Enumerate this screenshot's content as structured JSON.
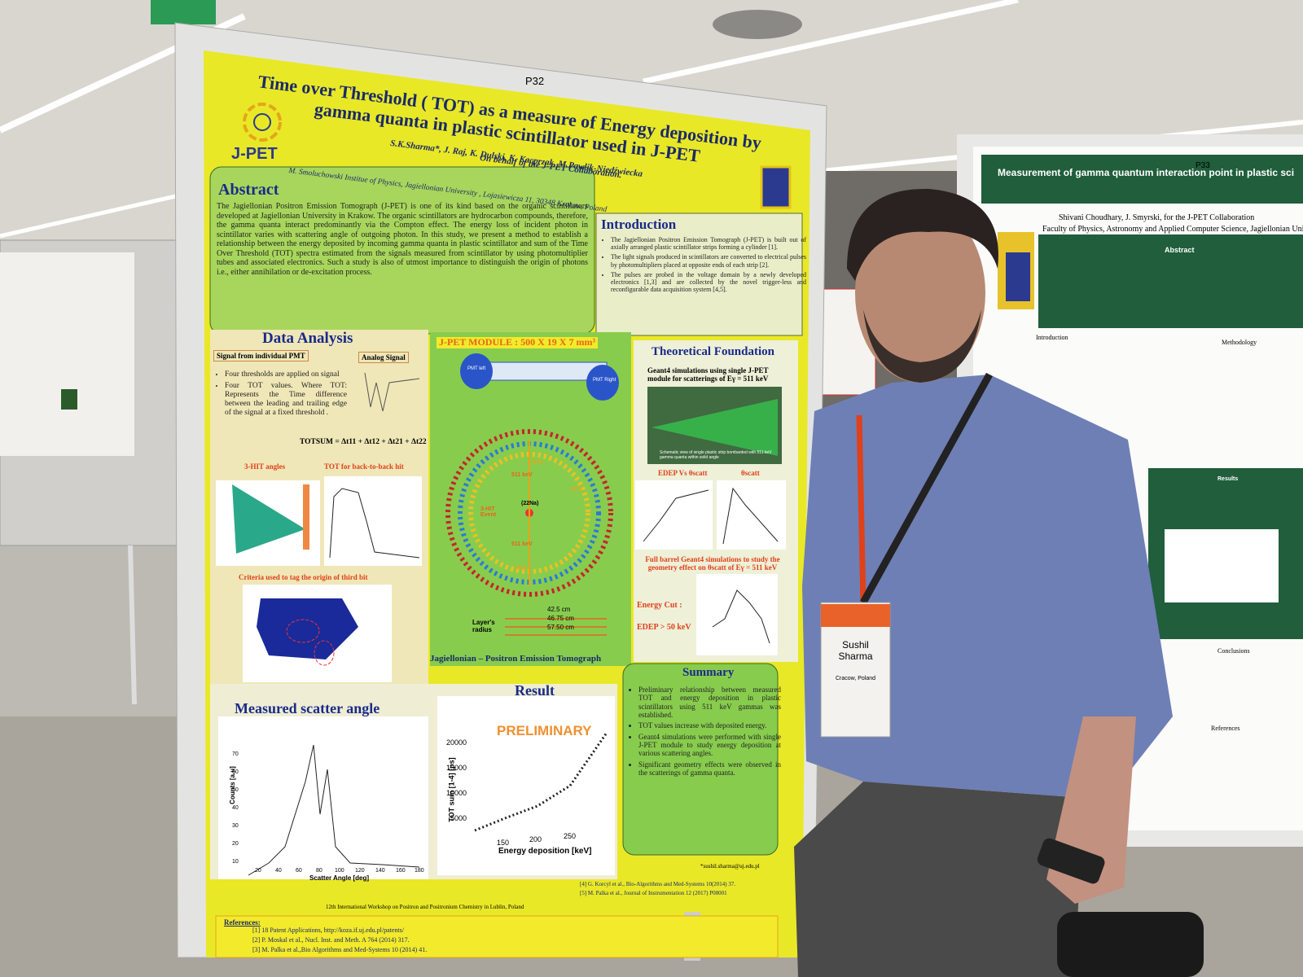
{
  "board_label_left": "P32",
  "board_label_right": "P33",
  "poster": {
    "title": "Time over Threshold ( TOT) as a measure of Energy deposition by gamma quanta in plastic scintillator used in J-PET",
    "logo": "J-PET",
    "authors": "S.K.Sharma*, J. Raj, K. Dulski, K. Kacprzak, M.Pawlik-Niedźwiecka",
    "collaboration": "On behalf of the J-PET Collaboration.",
    "affiliation": "M. Smoluchowski Institue of Physics, Jagiellonian University , Lojasiewicza 11, 30348 Krakow, Poland",
    "abstract": {
      "heading": "Abstract",
      "text": "The Jagiellonian Positron Emission Tomograph (J-PET) is one of its kind based on the organic scintillators developed at Jagiellonian University in Krakow. The organic scintillators are hydrocarbon compounds, therefore, the gamma quanta interact predominantly via the Compton effect. The energy loss of incident photon in scintillator varies with scattering angle of outgoing photon. In this study, we present a method to establish a relationship between the energy deposited by incoming gamma quanta in plastic scintillator and sum of the Time Over Threshold (TOT) spectra estimated from the signals measured from scintillator by using photomultiplier tubes and associated electronics. Such a study is also of utmost importance to distinguish the origin of photons i.e., either annihilation or de-excitation process."
    },
    "introduction": {
      "heading": "Introduction",
      "items": [
        "The Jagiellonian Positron Emission Tomograph (J-PET) is built out of axially arranged plastic scintillator strips forming a cylinder [1].",
        "The light signals produced in scintillators are converted to electrical pulses by photomultipliers placed at opposite ends of each strip [2].",
        "The pulses are probed in the voltage domain by a newly developed electronics [1,3] and are collected by the novel trigger-less and reconfigurable data acquisition system [4,5]."
      ]
    },
    "data_analysis": {
      "heading": "Data Analysis",
      "signal_label": "Signal from individual PMT",
      "analog_label": "Analog Signal",
      "bullets": [
        "Four thresholds are applied on signal",
        "Four TOT values. Where TOT: Represents the Time difference between the leading and trailing edge of the signal at a fixed threshold ."
      ],
      "formula": "TOTSUM = Δt11 + Δt12 + Δt21 + Δt22",
      "plot_labels": [
        "3-HIT angles",
        "TOT for back-to-back hit"
      ],
      "criteria": "Criteria used to tag the origin of third bit"
    },
    "module": {
      "heading": "J-PET MODULE : 500 X 19 X 7 mm³",
      "pmt_labels": [
        "PMT left",
        "PMT Right"
      ],
      "ring_labels": [
        "511 keV",
        "3-HIT Event",
        "(22Na)",
        "511 keV",
        "HIT1",
        "HIT2",
        "HIT3"
      ],
      "radii": [
        "42.5 cm",
        "46.75 cm",
        "57.50 cm"
      ],
      "radius_label": "Layer's radius",
      "footer": "Jagiellonian – Positron Emission Tomograph"
    },
    "theory": {
      "heading": "Theoretical Foundation",
      "text": "Geant4 simulations using single J-PET module for scatterings of Eγ = 511 keV",
      "caption": "Schematic view of single plastic strip bombarded with 511 keV gamma quanta within solid angle",
      "plot_label": "EDEP Vs θscatt",
      "plot_label2": "θscatt",
      "barrel": "Full barrel Geant4 simulations to study the geometry effect on θscatt of Eγ = 511 keV",
      "cut_label": "Energy Cut :",
      "cut": "EDEP > 50 keV"
    },
    "scatter": {
      "heading": "Measured scatter angle",
      "ylabel": "Counts [a.u]",
      "xlabel": "Scatter Angle [deg]",
      "yticks": [
        10,
        20,
        30,
        40,
        50,
        60,
        70
      ],
      "xticks": [
        20,
        40,
        60,
        80,
        100,
        120,
        140,
        160,
        180
      ]
    },
    "result": {
      "heading": "Result",
      "stamp": "PRELIMINARY",
      "ylabel": "TOT sum [1-4] [ps]",
      "xlabel": "Energy deposition [keV]",
      "yticks": [
        5000,
        10000,
        15000,
        20000
      ],
      "xticks": [
        150,
        200,
        250
      ]
    },
    "summary": {
      "heading": "Summary",
      "items": [
        "Preliminary relationship between measured TOT and energy deposition in plastic scintillators using 511 keV gammas was established.",
        "TOT values increase with deposited energy.",
        "Geant4 simulations were performed with single J-PET module to study energy deposition at various scattering angles.",
        "Significant geometry effects were observed in the scatterings of gamma quanta."
      ]
    },
    "conference": "12th International Workshop on Positron and Positronium Chemistry in Lublin, Poland",
    "email": "*sushil.sharma@uj.edu.pl",
    "references": {
      "heading": "References:",
      "items": [
        "[1] 18 Patent Applications, http://koza.if.uj.edu.pl/patents/",
        "[2] P. Moskal et al., Nucl. Inst. and Meth. A 764 (2014) 317.",
        "[3] M. Palka et al.,Bio Algorithms and Med-Systems 10 (2014) 41.",
        "[4] G. Korcyl et al., Bio-Algorithms and Med-Systems 10(2014) 37.",
        "[5] M. Palka et al., Journal of Instrumentation 12 (2017) P08001"
      ]
    }
  },
  "badge": {
    "name": "Sushil Sharma",
    "city": "Cracow, Poland"
  },
  "right_poster": {
    "title": "Measurement of gamma quantum interaction point in plastic sci",
    "authors": "Shivani Choudhary, J. Smyrski, for the J-PET Collaboration",
    "affiliation": "Faculty of Physics, Astronomy and Applied Computer Science, Jagiellonian Univers",
    "headings": [
      "Abstract",
      "Introduction",
      "Methodology",
      "Results",
      "Conclusions",
      "References"
    ]
  }
}
